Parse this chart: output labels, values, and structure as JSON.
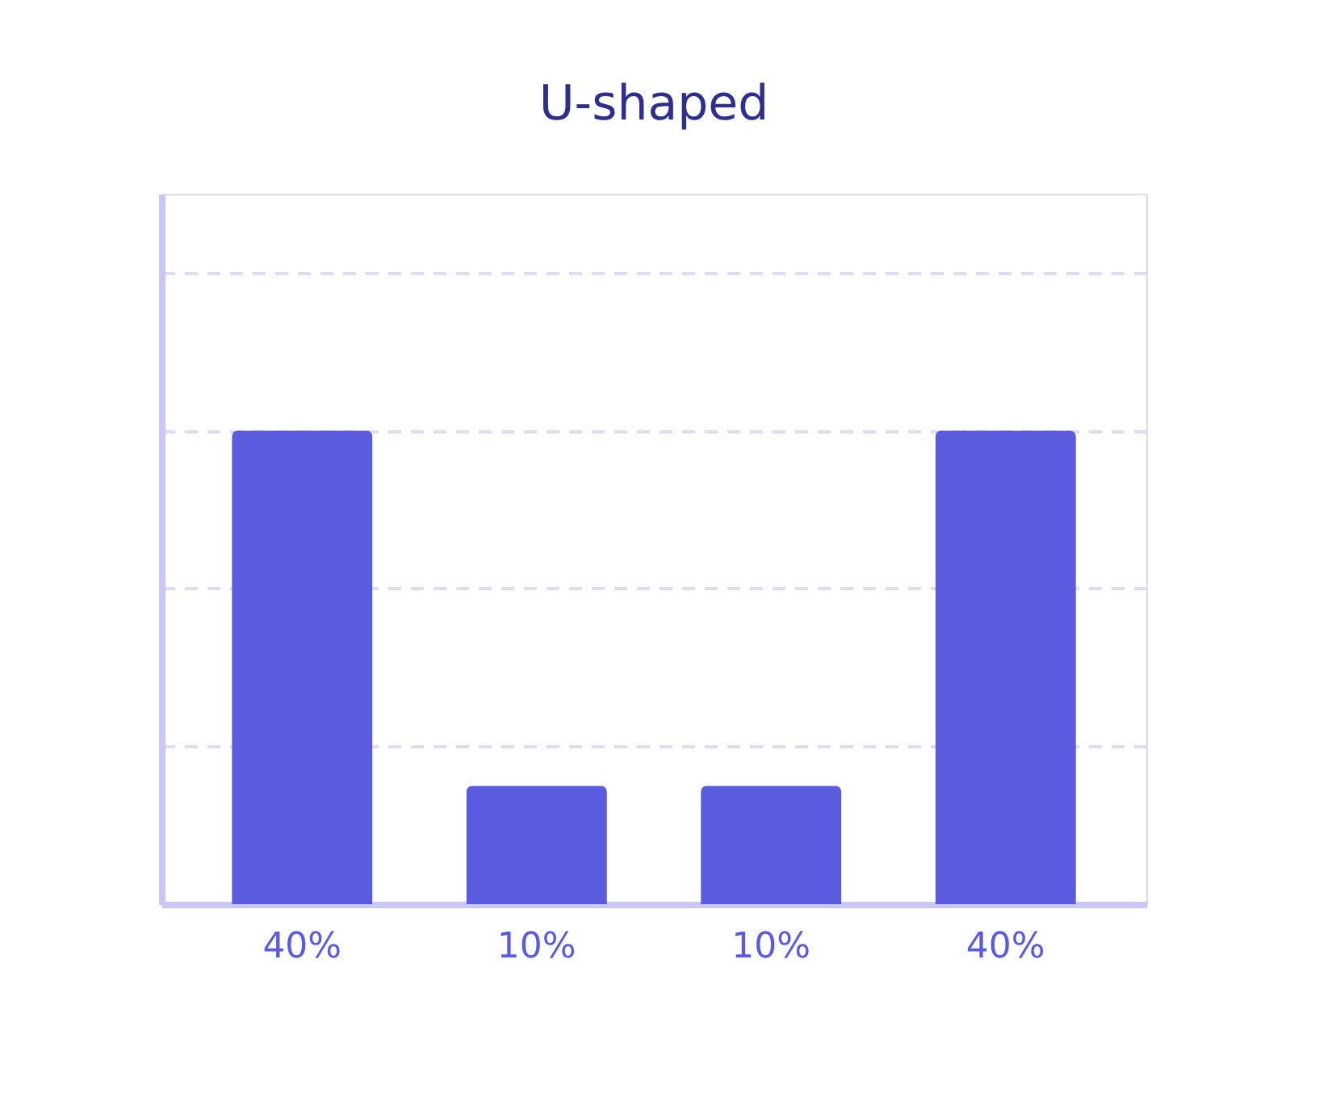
{
  "chart_data": {
    "type": "bar",
    "title": "U-shaped",
    "categories": [
      null,
      null,
      null,
      null
    ],
    "values": [
      40,
      10,
      10,
      40
    ],
    "color": "#5b5be0",
    "data_labels": true,
    "value_labels": [
      "40%",
      "10%",
      "10%",
      "40%"
    ],
    "ylim": [
      0,
      60
    ],
    "yticks": [
      {
        "value": 13.3,
        "label": null
      },
      {
        "value": 26.7,
        "label": null
      },
      {
        "value": 40,
        "label": null
      },
      {
        "value": 53.3,
        "label": null
      }
    ],
    "grid": "y",
    "tick_labels": false
  }
}
